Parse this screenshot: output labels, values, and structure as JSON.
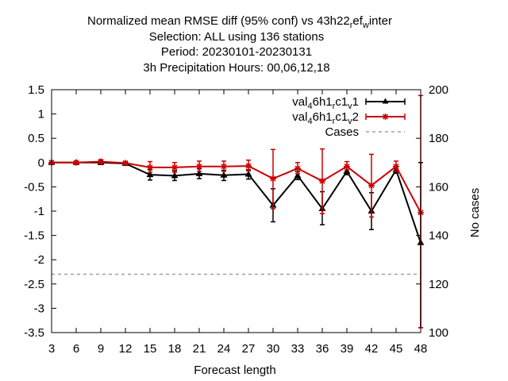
{
  "chart_data": {
    "type": "line",
    "title_lines": [
      "Normalized mean RMSE diff (95% conf) vs 43h22_ref_winter",
      "Selection: ALL using   136 stations",
      "Period: 20230101-20230131",
      "3h Precipitation   Hours:  00,06,12,18"
    ],
    "title_line1_parts": {
      "a": "Normalized mean RMSE diff (95% conf) vs 43h22",
      "sub1": "r",
      "b": "ef",
      "sub2": "w",
      "c": "inter"
    },
    "xlabel": "Forecast length",
    "ylabel": "",
    "y2label": "No cases",
    "x": [
      3,
      6,
      9,
      12,
      15,
      18,
      21,
      24,
      27,
      30,
      33,
      36,
      39,
      42,
      45,
      48
    ],
    "xlim": [
      3,
      48
    ],
    "ylim": [
      -3.5,
      1.5
    ],
    "y2lim": [
      100,
      200
    ],
    "xticks": [
      "3",
      "6",
      "9",
      "12",
      "15",
      "18",
      "21",
      "24",
      "27",
      "30",
      "33",
      "36",
      "39",
      "42",
      "45",
      "48"
    ],
    "yticks": [
      "1.5",
      "1",
      "0.5",
      "0",
      "-0.5",
      "-1",
      "-1.5",
      "-2",
      "-2.5",
      "-3",
      "-3.5"
    ],
    "y2ticks": [
      "200",
      "180",
      "160",
      "140",
      "120",
      "100"
    ],
    "grid": false,
    "legend_position": "top-right",
    "series": [
      {
        "name": "val_46h1_rc1_v1",
        "legend_parts": {
          "a": "val",
          "s1": "4",
          "b": "6h1",
          "s2": "r",
          "c": "c1",
          "s3": "v",
          "d": "1"
        },
        "color": "#000000",
        "marker": "triangle",
        "values": [
          0.0,
          0.0,
          0.0,
          -0.02,
          -0.25,
          -0.27,
          -0.23,
          -0.26,
          -0.24,
          -0.88,
          -0.27,
          -0.95,
          -0.18,
          -1.0,
          -0.15,
          -1.65
        ],
        "err_low": [
          0.0,
          -0.02,
          -0.04,
          -0.05,
          -0.36,
          -0.37,
          -0.33,
          -0.37,
          -0.34,
          -1.22,
          -0.35,
          -1.28,
          -0.25,
          -1.38,
          -0.22,
          -3.4
        ],
        "err_high": [
          0.0,
          0.02,
          0.04,
          0.01,
          -0.15,
          -0.17,
          -0.13,
          -0.16,
          -0.15,
          -0.54,
          -0.19,
          -0.6,
          -0.1,
          -0.62,
          -0.08,
          0.0
        ]
      },
      {
        "name": "val_46h1_rc1_v2",
        "legend_parts": {
          "a": "val",
          "s1": "4",
          "b": "6h1",
          "s2": "r",
          "c": "c1",
          "s3": "v",
          "d": "2"
        },
        "color": "#cc0000",
        "marker": "star",
        "values": [
          0.0,
          0.0,
          0.02,
          -0.01,
          -0.1,
          -0.1,
          -0.08,
          -0.08,
          -0.07,
          -0.33,
          -0.12,
          -0.38,
          -0.08,
          -0.47,
          -0.08,
          -1.03
        ],
        "err_low": [
          0.0,
          -0.02,
          -0.02,
          -0.04,
          -0.2,
          -0.2,
          -0.18,
          -0.18,
          -0.17,
          -0.95,
          -0.23,
          -1.05,
          -0.15,
          -1.12,
          -0.18,
          -3.4
        ],
        "err_high": [
          0.0,
          0.02,
          0.06,
          0.02,
          0.02,
          0.0,
          0.03,
          0.03,
          0.05,
          0.27,
          0.0,
          0.28,
          0.02,
          0.17,
          0.03,
          1.38
        ]
      },
      {
        "name": "Cases",
        "color": "#a0a0a0",
        "style": "dashed",
        "axis": "y2",
        "values": [
          124,
          124,
          124,
          124,
          124,
          124,
          124,
          124,
          124,
          124,
          124,
          124,
          124,
          124,
          124,
          124
        ]
      }
    ]
  }
}
